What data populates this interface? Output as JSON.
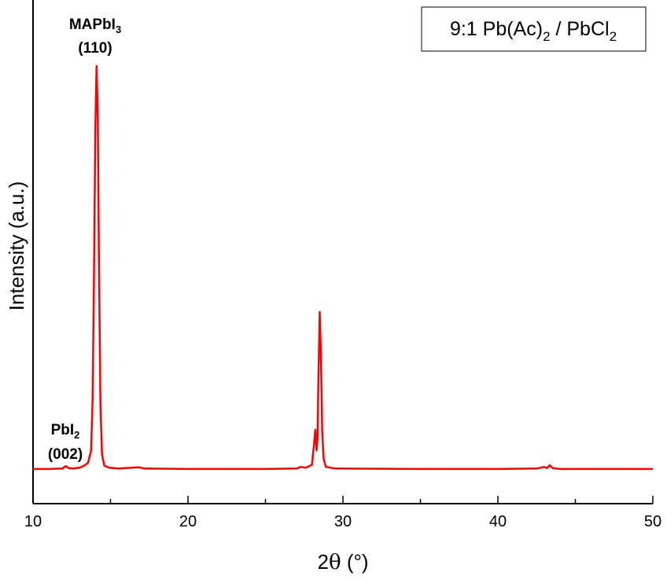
{
  "chart_data": {
    "type": "line",
    "xlabel_base": "2",
    "xlabel_symbol": "θ",
    "xlabel_unit": " (°)",
    "ylabel": "Intensity (a.u.)",
    "xlim": [
      10,
      50
    ],
    "ylim": [
      0,
      100
    ],
    "y_ticks_shown": false,
    "grid": false,
    "legend_position": "top-right",
    "x_ticks": [
      10,
      20,
      30,
      40,
      50
    ],
    "x_tick_labels": [
      "10",
      "20",
      "30",
      "40",
      "50"
    ],
    "line_color": "#ff0000",
    "legend": {
      "base": "9:1 Pb(Ac)",
      "sub1": "2",
      "mid": " / PbCl",
      "sub2": "2"
    },
    "annotations": [
      {
        "id": "mapbi3",
        "line1_base": "MAPbI",
        "line1_sub": "3",
        "line2": "(110)",
        "x": 14.1
      },
      {
        "id": "pbi2",
        "line1_base": "PbI",
        "line1_sub": "2",
        "line2": "(002)",
        "x": 12.2
      }
    ],
    "series": [
      {
        "points": [
          [
            10.0,
            2.5
          ],
          [
            11.0,
            2.5
          ],
          [
            11.9,
            2.6
          ],
          [
            12.1,
            3.2
          ],
          [
            12.3,
            2.7
          ],
          [
            12.6,
            2.6
          ],
          [
            13.0,
            2.8
          ],
          [
            13.3,
            3.3
          ],
          [
            13.55,
            4.0
          ],
          [
            13.75,
            7.0
          ],
          [
            13.85,
            20.0
          ],
          [
            13.95,
            55.0
          ],
          [
            14.02,
            85.0
          ],
          [
            14.1,
            100.0
          ],
          [
            14.18,
            88.0
          ],
          [
            14.25,
            55.0
          ],
          [
            14.35,
            18.0
          ],
          [
            14.45,
            6.0
          ],
          [
            14.6,
            3.3
          ],
          [
            14.9,
            2.8
          ],
          [
            15.5,
            2.6
          ],
          [
            16.8,
            2.9
          ],
          [
            17.2,
            2.6
          ],
          [
            20.0,
            2.5
          ],
          [
            25.0,
            2.5
          ],
          [
            27.0,
            2.6
          ],
          [
            27.3,
            3.0
          ],
          [
            27.6,
            2.8
          ],
          [
            28.0,
            3.5
          ],
          [
            28.12,
            8.0
          ],
          [
            28.22,
            12.0
          ],
          [
            28.3,
            7.0
          ],
          [
            28.36,
            10.0
          ],
          [
            28.42,
            25.0
          ],
          [
            28.5,
            40.5
          ],
          [
            28.58,
            30.0
          ],
          [
            28.66,
            12.0
          ],
          [
            28.75,
            5.0
          ],
          [
            28.9,
            3.0
          ],
          [
            29.5,
            2.6
          ],
          [
            35.0,
            2.5
          ],
          [
            40.0,
            2.5
          ],
          [
            42.5,
            2.6
          ],
          [
            43.0,
            3.0
          ],
          [
            43.15,
            2.7
          ],
          [
            43.35,
            3.4
          ],
          [
            43.55,
            2.7
          ],
          [
            44.0,
            2.5
          ],
          [
            50.0,
            2.5
          ]
        ]
      }
    ]
  }
}
